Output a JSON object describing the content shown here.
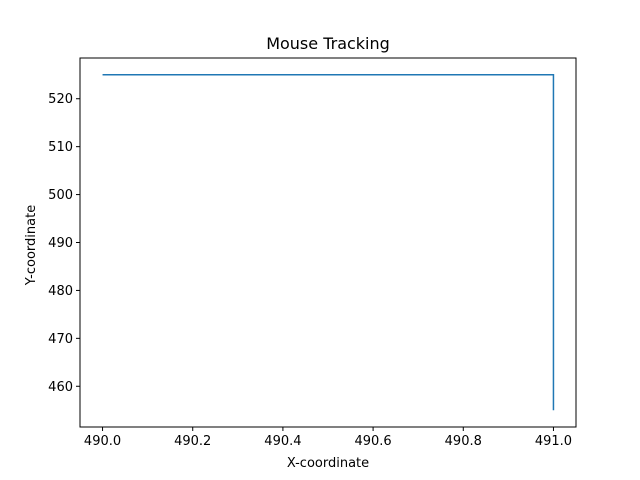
{
  "chart_data": {
    "type": "line",
    "title": "Mouse Tracking",
    "xlabel": "X-coordinate",
    "ylabel": "Y-coordinate",
    "xlim": [
      489.95,
      491.05
    ],
    "ylim": [
      451.5,
      528.5
    ],
    "xticks": [
      490.0,
      490.2,
      490.4,
      490.6,
      490.8,
      491.0
    ],
    "xtick_labels": [
      "490.0",
      "490.2",
      "490.4",
      "490.6",
      "490.8",
      "491.0"
    ],
    "yticks": [
      460,
      470,
      480,
      490,
      500,
      510,
      520
    ],
    "ytick_labels": [
      "460",
      "470",
      "480",
      "490",
      "500",
      "510",
      "520"
    ],
    "grid": false,
    "series": [
      {
        "color": "#1f77b4",
        "x": [
          490.0,
          491.0,
          491.0
        ],
        "y": [
          525,
          525,
          455
        ]
      }
    ]
  }
}
